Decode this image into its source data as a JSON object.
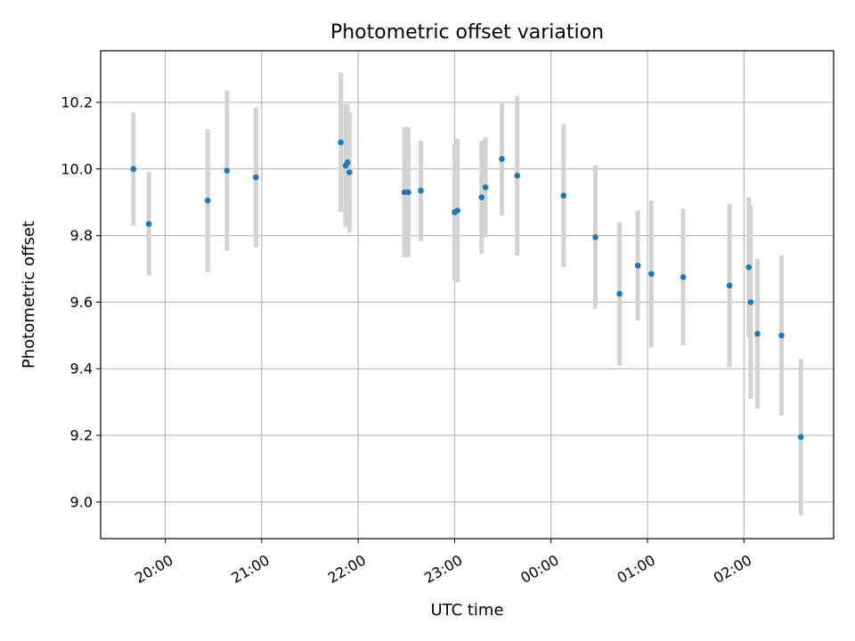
{
  "chart_data": {
    "type": "scatter",
    "title": "Photometric offset variation",
    "xlabel": "UTC time",
    "ylabel": "Photometric offset",
    "grid": true,
    "x_axis": {
      "unit": "hours UTC, values after midnight are > 24",
      "range": [
        19.33,
        26.93
      ],
      "ticks": [
        20,
        21,
        22,
        23,
        24,
        25,
        26
      ],
      "tick_labels": [
        "20:00",
        "21:00",
        "22:00",
        "23:00",
        "00:00",
        "01:00",
        "02:00"
      ]
    },
    "y_axis": {
      "range": [
        8.89,
        10.355
      ],
      "ticks": [
        9.0,
        9.2,
        9.4,
        9.6,
        9.8,
        10.0,
        10.2
      ],
      "tick_labels": [
        "9.0",
        "9.2",
        "9.4",
        "9.6",
        "9.8",
        "10.0",
        "10.2"
      ]
    },
    "colors": {
      "points": "#1f77b4",
      "errorbars": "#d3d3d3",
      "grid": "#b0b0b0"
    },
    "series": [
      {
        "x": [
          19.67,
          19.83,
          20.44,
          20.64,
          20.94,
          21.82,
          21.87,
          21.89,
          21.91,
          22.48,
          22.52,
          22.65,
          23.0,
          23.03,
          23.28,
          23.32,
          23.49,
          23.65,
          24.13,
          24.46,
          24.71,
          24.9,
          25.04,
          25.37,
          25.85,
          26.05,
          26.07,
          26.14,
          26.39,
          26.59
        ],
        "y": [
          10.0,
          9.835,
          9.905,
          9.995,
          9.975,
          10.08,
          10.01,
          10.02,
          9.99,
          9.93,
          9.93,
          9.935,
          9.87,
          9.875,
          9.915,
          9.945,
          10.03,
          9.98,
          9.92,
          9.795,
          9.625,
          9.71,
          9.685,
          9.675,
          9.65,
          9.705,
          9.6,
          9.505,
          9.5,
          9.195
        ],
        "yerr": [
          0.17,
          0.155,
          0.215,
          0.24,
          0.21,
          0.21,
          0.185,
          0.175,
          0.18,
          0.195,
          0.195,
          0.15,
          0.205,
          0.215,
          0.17,
          0.15,
          0.17,
          0.24,
          0.215,
          0.215,
          0.215,
          0.165,
          0.22,
          0.205,
          0.245,
          0.21,
          0.29,
          0.225,
          0.24,
          0.235
        ]
      }
    ]
  }
}
